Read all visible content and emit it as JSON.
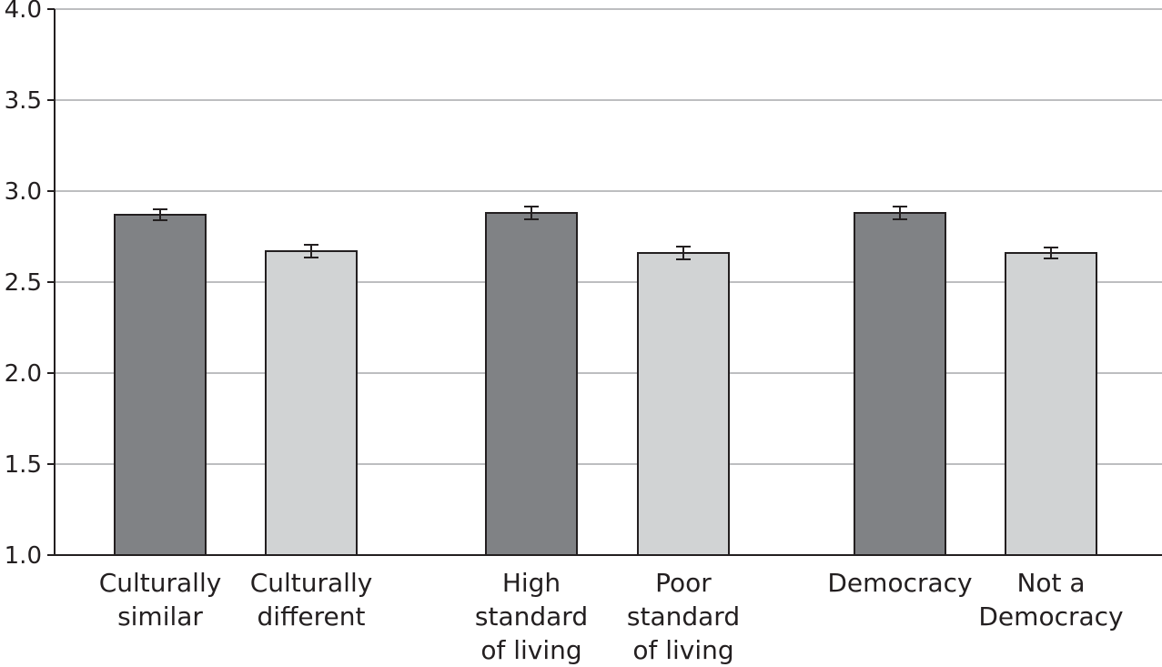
{
  "chart_data": {
    "type": "bar",
    "title": "",
    "xlabel": "",
    "ylabel": "",
    "ylim": [
      1.0,
      4.0
    ],
    "yticks": [
      "1.0",
      "1.5",
      "2.0",
      "2.5",
      "3.0",
      "3.5",
      "4.0"
    ],
    "grid": true,
    "categories": [
      [
        "Culturally",
        "similar"
      ],
      [
        "Culturally",
        "different"
      ],
      [
        "High",
        "standard",
        "of living"
      ],
      [
        "Poor",
        "standard",
        "of living"
      ],
      [
        "Democracy"
      ],
      [
        "Not a",
        "Democracy"
      ]
    ],
    "values": [
      2.87,
      2.67,
      2.88,
      2.66,
      2.88,
      2.66
    ],
    "errors": [
      0.03,
      0.035,
      0.035,
      0.035,
      0.035,
      0.03
    ],
    "colors": [
      "#808285",
      "#d1d3d4",
      "#808285",
      "#d1d3d4",
      "#808285",
      "#d1d3d4"
    ]
  }
}
